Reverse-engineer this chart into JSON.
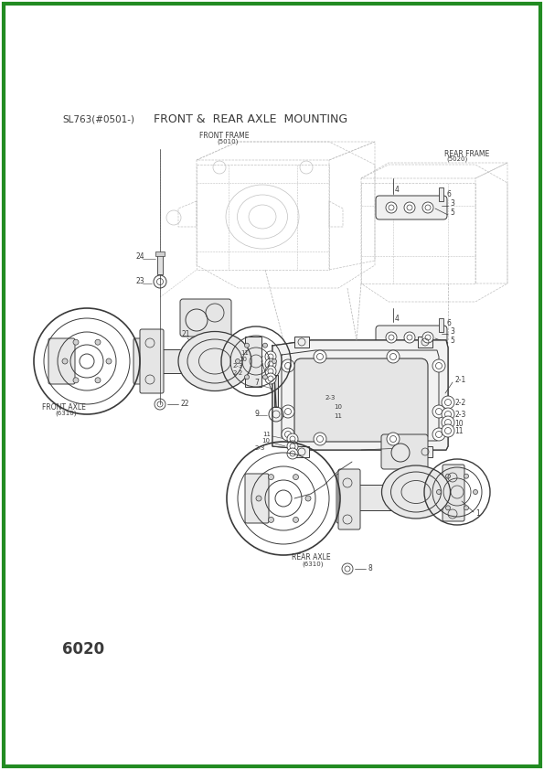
{
  "page_width": 5.95,
  "page_height": 8.42,
  "dpi": 100,
  "bg_color": "#ffffff",
  "border_color": "#228B22",
  "border_lw": 3,
  "draw_color": "#3a3a3a",
  "ghost_color": "#b0b0b0",
  "light_color": "#888888",
  "header_left": "SL763(#0501-)",
  "header_right": "FRONT &  REAR AXLE  MOUNTING",
  "footer": "6020",
  "front_frame_label": [
    "FRONT FRAME",
    "(5010)"
  ],
  "rear_frame_label": [
    "REAR FRAME",
    "(5020)"
  ],
  "front_axle_label": [
    "FRONT AXLE",
    "(6310)"
  ],
  "rear_axle_label": [
    "REAR AXLE",
    "(6310)"
  ],
  "lfs": 5.5,
  "hfs": 8.5,
  "ffs": 11
}
